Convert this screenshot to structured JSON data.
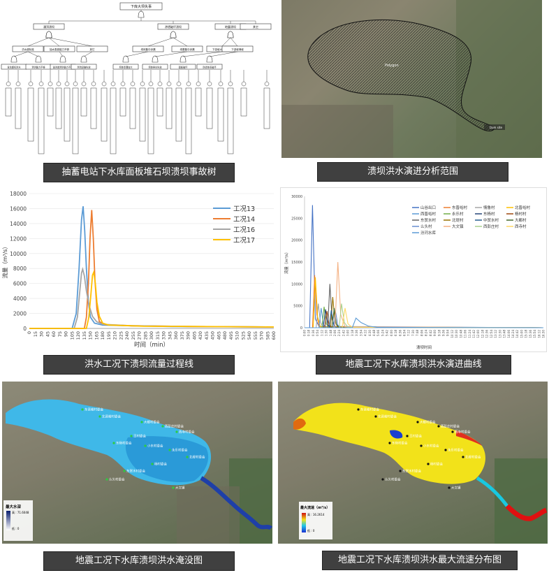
{
  "panels": {
    "fault_tree": {
      "caption": "抽蓄电站下水库面板堆石坝溃坝事故树",
      "top_event": "下库大坝失事",
      "level1": [
        "漫顶溃坝",
        "渗透破坏溃坝",
        "地震溃坝",
        "其它"
      ],
      "level2": [
        "洪水超标准",
        "抽水泵超能力不够",
        "其它",
        "坝体集中渗漏",
        "坝基集中渗漏",
        "下游坡大面积散浸",
        "下游坡滑坡"
      ],
      "level3": [
        "发生超标洪水",
        "泄洪能力不够",
        "溢洪道泄洪能力不够",
        "泄流设施失效",
        "坝体渗漏加大",
        "坝体排水失效",
        "面板破坏",
        "防渗体系破坏"
      ]
    },
    "flood_range": {
      "caption": "溃坝洪水演进分析范围",
      "map_label_1": "Polygon",
      "map_label_2": "Dam site"
    },
    "flow_chart": {
      "caption": "洪水工况下溃坝流量过程线"
    },
    "eq_curve": {
      "caption": "地震工况下水库溃坝洪水演进曲线"
    },
    "inundation": {
      "caption": "地震工况下水库溃坝洪水淹没图",
      "legend_title": "最大水深",
      "legend_high": "高 : 71.6048",
      "legend_low": "低 : 0",
      "villages": [
        "东晋峪村委会",
        "北晋峪村委会",
        "大都村委会",
        "西彭庄村委会",
        "西寺村委会",
        "王村委会",
        "东杨村委会",
        "小东村委会",
        "永乐村委会",
        "北堤村委会",
        "杨村委会",
        "东贺水村委会",
        "么头村委会",
        "大文镇"
      ]
    },
    "velocity": {
      "caption": "地震工况下水库溃坝洪水最大流速分布图",
      "legend_title": "最大流速（m³/s）",
      "legend_high": "高 : 16.2614",
      "legend_low": "低 : 0",
      "villages": [
        "东晋峪村委会",
        "北晋峪村委会",
        "大都村委会",
        "西彭庄村委会",
        "西寺村委会",
        "王村委会",
        "东杨村委会",
        "小东村委会",
        "永乐村委会",
        "北堤村委会",
        "杨村委会",
        "东贺水村委会",
        "么头村委会",
        "大文镇"
      ]
    }
  },
  "chart_data": [
    {
      "type": "line",
      "ylabel": "流量（m³/s）",
      "xlabel": "时间（min）",
      "ylim": [
        0,
        18000
      ],
      "yticks": [
        0,
        2000,
        4000,
        6000,
        8000,
        10000,
        12000,
        14000,
        16000,
        18000
      ],
      "xlim": [
        0,
        600
      ],
      "xticks": [
        0,
        15,
        30,
        45,
        60,
        75,
        90,
        105,
        120,
        135,
        150,
        165,
        180,
        195,
        210,
        225,
        240,
        255,
        270,
        285,
        300,
        315,
        330,
        345,
        360,
        375,
        390,
        405,
        420,
        435,
        450,
        465,
        480,
        495,
        510,
        525,
        540,
        555,
        570,
        585,
        600
      ],
      "legend_position": "top-right",
      "series": [
        {
          "name": "工况13",
          "color": "#5b9bd5",
          "points": [
            [
              0,
              0
            ],
            [
              105,
              0
            ],
            [
              115,
              2000
            ],
            [
              122,
              8000
            ],
            [
              128,
              14500
            ],
            [
              132,
              16300
            ],
            [
              136,
              13000
            ],
            [
              140,
              8000
            ],
            [
              145,
              3500
            ],
            [
              150,
              1500
            ],
            [
              160,
              700
            ],
            [
              180,
              450
            ],
            [
              250,
              350
            ],
            [
              350,
              250
            ],
            [
              600,
              200
            ]
          ]
        },
        {
          "name": "工况14",
          "color": "#ed7d31",
          "points": [
            [
              0,
              0
            ],
            [
              135,
              0
            ],
            [
              140,
              1500
            ],
            [
              145,
              6000
            ],
            [
              149,
              12000
            ],
            [
              153,
              15800
            ],
            [
              157,
              12000
            ],
            [
              161,
              6500
            ],
            [
              166,
              2500
            ],
            [
              172,
              900
            ],
            [
              185,
              500
            ],
            [
              250,
              350
            ],
            [
              400,
              250
            ],
            [
              600,
              200
            ]
          ]
        },
        {
          "name": "工况16",
          "color": "#a5a5a5",
          "points": [
            [
              0,
              0
            ],
            [
              110,
              0
            ],
            [
              118,
              1500
            ],
            [
              124,
              5000
            ],
            [
              128,
              7400
            ],
            [
              131,
              7900
            ],
            [
              135,
              7000
            ],
            [
              140,
              5000
            ],
            [
              147,
              3000
            ],
            [
              155,
              1600
            ],
            [
              165,
              900
            ],
            [
              180,
              550
            ],
            [
              250,
              350
            ],
            [
              400,
              250
            ],
            [
              600,
              200
            ]
          ]
        },
        {
          "name": "工况17",
          "color": "#ffc000",
          "points": [
            [
              0,
              0
            ],
            [
              140,
              0
            ],
            [
              146,
              1500
            ],
            [
              151,
              4500
            ],
            [
              155,
              7100
            ],
            [
              158,
              7500
            ],
            [
              162,
              6000
            ],
            [
              166,
              3500
            ],
            [
              172,
              1600
            ],
            [
              180,
              700
            ],
            [
              195,
              450
            ],
            [
              280,
              300
            ],
            [
              600,
              200
            ]
          ]
        }
      ]
    },
    {
      "type": "line",
      "ylabel": "流量（m³/s）",
      "xlabel": "溃坝时间",
      "ylim": [
        0,
        30000
      ],
      "yticks": [
        0,
        5000,
        10000,
        15000,
        20000,
        25000,
        30000
      ],
      "xtick_labels": [
        "0:00",
        "0:18",
        "0:36",
        "0:54",
        "1:12",
        "1:30",
        "1:48",
        "2:06",
        "2:24",
        "2:42",
        "3:00",
        "3:18",
        "3:36",
        "3:54",
        "4:12",
        "4:30",
        "4:48",
        "5:06",
        "5:24",
        "5:42",
        "6:00",
        "6:18",
        "6:36",
        "6:54",
        "7:12",
        "7:30",
        "7:48",
        "8:06",
        "8:24",
        "8:42",
        "9:00",
        "9:18",
        "9:36",
        "9:54",
        "10:12",
        "10:30",
        "10:48",
        "11:06",
        "11:24",
        "11:42",
        "12:00",
        "12:18",
        "12:36",
        "12:54",
        "13:12",
        "13:30",
        "13:48",
        "14:06",
        "14:24",
        "14:42",
        "15:00",
        "15:18",
        "15:36",
        "15:54",
        "16:12",
        "16:30"
      ],
      "legend_position": "top-right",
      "series": [
        {
          "name": "山谷出口",
          "color": "#4472c4",
          "points": [
            [
              0,
              0
            ],
            [
              0.35,
              0
            ],
            [
              0.55,
              28000
            ],
            [
              0.75,
              2000
            ],
            [
              1.0,
              300
            ],
            [
              16.5,
              0
            ]
          ]
        },
        {
          "name": "东晋峪村",
          "color": "#ed7d31",
          "points": [
            [
              0,
              0
            ],
            [
              0.55,
              0
            ],
            [
              0.7,
              12000
            ],
            [
              0.85,
              3000
            ],
            [
              1.0,
              200
            ],
            [
              16.5,
              0
            ]
          ]
        },
        {
          "name": "情鲁村",
          "color": "#a5a5a5",
          "points": [
            [
              0,
              0
            ],
            [
              0.8,
              0
            ],
            [
              0.95,
              5500
            ],
            [
              1.1,
              1200
            ],
            [
              1.3,
              100
            ],
            [
              16.5,
              0
            ]
          ]
        },
        {
          "name": "北晋峪村",
          "color": "#ffc000",
          "points": [
            [
              0,
              0
            ],
            [
              0.6,
              0
            ],
            [
              0.75,
              11500
            ],
            [
              0.9,
              2500
            ],
            [
              1.1,
              200
            ],
            [
              16.5,
              0
            ]
          ]
        },
        {
          "name": "西晋峪村",
          "color": "#5b9bd5",
          "points": [
            [
              0,
              0
            ],
            [
              1.0,
              0
            ],
            [
              1.15,
              4500
            ],
            [
              1.3,
              800
            ],
            [
              1.5,
              0
            ],
            [
              16.5,
              0
            ]
          ]
        },
        {
          "name": "永乐村",
          "color": "#70ad47",
          "points": [
            [
              0,
              0
            ],
            [
              1.2,
              0
            ],
            [
              1.35,
              4800
            ],
            [
              1.5,
              900
            ],
            [
              1.7,
              0
            ],
            [
              16.5,
              0
            ]
          ]
        },
        {
          "name": "东杨村",
          "color": "#264478",
          "points": [
            [
              0,
              0
            ],
            [
              1.3,
              0
            ],
            [
              1.45,
              4200
            ],
            [
              1.6,
              700
            ],
            [
              1.8,
              0
            ],
            [
              16.5,
              0
            ]
          ]
        },
        {
          "name": "杨村村",
          "color": "#9e480e",
          "points": [
            [
              0,
              0
            ],
            [
              1.4,
              0
            ],
            [
              1.55,
              3800
            ],
            [
              1.7,
              600
            ],
            [
              1.9,
              0
            ],
            [
              16.5,
              0
            ]
          ]
        },
        {
          "name": "东贺水村",
          "color": "#636363",
          "points": [
            [
              0,
              0
            ],
            [
              1.6,
              0
            ],
            [
              1.75,
              10000
            ],
            [
              1.9,
              2000
            ],
            [
              2.1,
              100
            ],
            [
              16.5,
              0
            ]
          ]
        },
        {
          "name": "北堤村",
          "color": "#997300",
          "points": [
            [
              0,
              0
            ],
            [
              1.8,
              0
            ],
            [
              1.95,
              7000
            ],
            [
              2.1,
              1500
            ],
            [
              2.3,
              100
            ],
            [
              16.5,
              0
            ]
          ]
        },
        {
          "name": "中贺水村",
          "color": "#255e91",
          "points": [
            [
              0,
              0
            ],
            [
              1.7,
              0
            ],
            [
              1.85,
              4000
            ],
            [
              2.0,
              700
            ],
            [
              2.2,
              0
            ],
            [
              16.5,
              0
            ]
          ]
        },
        {
          "name": "大都村",
          "color": "#43682b",
          "points": [
            [
              0,
              0
            ],
            [
              1.9,
              0
            ],
            [
              2.05,
              4500
            ],
            [
              2.2,
              800
            ],
            [
              2.4,
              0
            ],
            [
              16.5,
              0
            ]
          ]
        },
        {
          "name": "么头村",
          "color": "#698ed0",
          "points": [
            [
              0,
              0
            ],
            [
              2.0,
              0
            ],
            [
              2.15,
              3500
            ],
            [
              2.3,
              600
            ],
            [
              2.5,
              0
            ],
            [
              16.5,
              0
            ]
          ]
        },
        {
          "name": "大文镇",
          "color": "#f4b183",
          "points": [
            [
              0,
              0
            ],
            [
              2.1,
              0
            ],
            [
              2.3,
              15000
            ],
            [
              2.5,
              3000
            ],
            [
              2.8,
              200
            ],
            [
              16.5,
              0
            ]
          ]
        },
        {
          "name": "西彭庄村",
          "color": "#a9d18e",
          "points": [
            [
              0,
              0
            ],
            [
              2.4,
              0
            ],
            [
              2.55,
              5500
            ],
            [
              2.75,
              1200
            ],
            [
              3.0,
              100
            ],
            [
              16.5,
              0
            ]
          ]
        },
        {
          "name": "西寺村",
          "color": "#ffd966",
          "points": [
            [
              0,
              0
            ],
            [
              2.6,
              0
            ],
            [
              2.8,
              4500
            ],
            [
              3.0,
              900
            ],
            [
              3.3,
              100
            ],
            [
              16.5,
              0
            ]
          ]
        },
        {
          "name": "汾河水库",
          "color": "#5b9bd5",
          "points": [
            [
              0,
              0
            ],
            [
              3.3,
              0
            ],
            [
              3.55,
              2200
            ],
            [
              3.9,
              1200
            ],
            [
              4.4,
              400
            ],
            [
              5.0,
              100
            ],
            [
              16.5,
              0
            ]
          ]
        }
      ]
    }
  ]
}
